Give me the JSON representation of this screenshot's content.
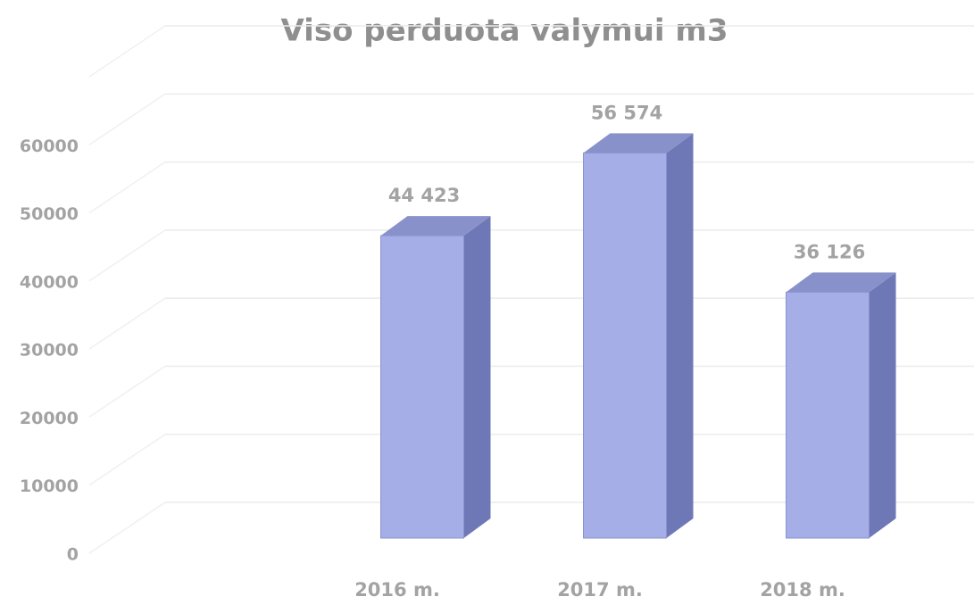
{
  "chart_data": {
    "type": "bar3d",
    "title": "Viso perduota valymui m3",
    "categories": [
      null,
      "2016 m.",
      "2017 m.",
      "2018 m."
    ],
    "values": [
      null,
      44423,
      56574,
      36126
    ],
    "value_labels": [
      null,
      "44 423",
      "56 574",
      "36 126"
    ],
    "color": "#a5aee6",
    "ylim": [
      0,
      70000
    ],
    "yticks": [
      0,
      10000,
      20000,
      30000,
      40000,
      50000,
      60000
    ],
    "grid": true
  }
}
